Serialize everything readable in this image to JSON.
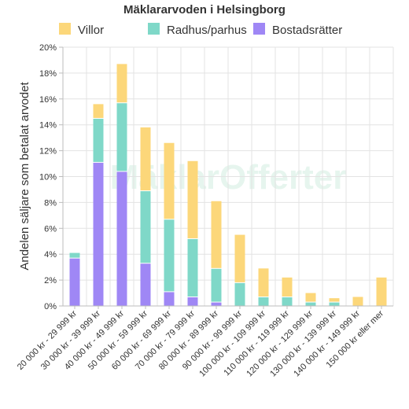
{
  "chart_data": {
    "type": "bar",
    "stacked": true,
    "title": "Mäklararvoden i Helsingborg",
    "ylabel": "Andelen säljare som betalat arvodet",
    "xlabel": "",
    "ylim": [
      0,
      20
    ],
    "yticks": [
      "0%",
      "2%",
      "4%",
      "6%",
      "8%",
      "10%",
      "12%",
      "14%",
      "16%",
      "18%",
      "20%"
    ],
    "grid": true,
    "legend_position": "top",
    "watermark": "MäklarOfferter",
    "categories": [
      "20 000 kr - 29 999 kr",
      "30 000 kr - 39 999 kr",
      "40 000 kr - 49 999 kr",
      "50 000 kr - 59 999 kr",
      "60 000 kr - 69 999 kr",
      "70 000 kr - 79 999 kr",
      "80 000 kr - 89 999 kr",
      "90 000 kr - 99 999 kr",
      "100 000 kr - 109 999 kr",
      "110 000 kr - 119 999 kr",
      "120 000 kr - 129 999 kr",
      "130 000 kr - 139 999 kr",
      "140 000 kr - 149 999 kr",
      "150 000 kr eller mer"
    ],
    "series": [
      {
        "name": "Bostadsrätter",
        "color": "#9f87f5",
        "values": [
          3.7,
          11.1,
          10.4,
          3.3,
          1.1,
          0.7,
          0.3,
          0.0,
          0.0,
          0.0,
          0.0,
          0.0,
          0.0,
          0.0
        ]
      },
      {
        "name": "Radhus/parhus",
        "color": "#7fd8c8",
        "values": [
          0.4,
          3.4,
          5.3,
          5.6,
          5.6,
          4.5,
          2.6,
          1.8,
          0.7,
          0.7,
          0.3,
          0.3,
          0.0,
          0.0
        ]
      },
      {
        "name": "Villor",
        "color": "#fcd77a",
        "values": [
          0.0,
          1.1,
          3.0,
          4.9,
          5.9,
          6.0,
          5.2,
          3.7,
          2.2,
          1.5,
          0.7,
          0.3,
          0.7,
          2.2
        ]
      }
    ],
    "legend_order": [
      "Villor",
      "Radhus/parhus",
      "Bostadsrätter"
    ]
  }
}
